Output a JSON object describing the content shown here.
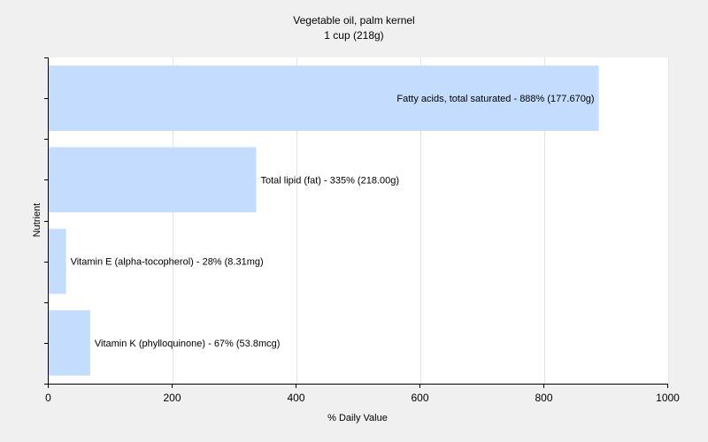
{
  "chart_data": {
    "type": "bar",
    "orientation": "horizontal",
    "title": "Vegetable oil, palm kernel",
    "subtitle": "1 cup (218g)",
    "xlabel": "% Daily Value",
    "ylabel": "Nutrient",
    "xlim": [
      0,
      1000
    ],
    "xticks": [
      0,
      200,
      400,
      600,
      800,
      1000
    ],
    "grid": true,
    "bar_color": "#c4ddff",
    "plot_background": "#ffffff",
    "page_background": "#f0f0f0",
    "categories": [
      "Fatty acids, total saturated",
      "Total lipid (fat)",
      "Vitamin E (alpha-tocopherol)",
      "Vitamin K (phylloquinone)"
    ],
    "values": [
      888,
      335,
      28,
      67
    ],
    "labels": [
      "Fatty acids, total saturated - 888% (177.670g)",
      "Total lipid (fat) - 335% (218.00g)",
      "Vitamin E (alpha-tocopherol) - 28% (8.31mg)",
      "Vitamin K (phylloquinone) - 67% (53.8mcg)"
    ]
  }
}
